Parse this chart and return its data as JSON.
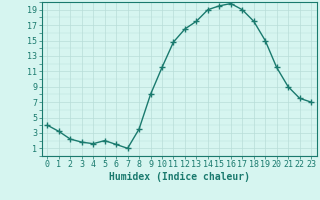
{
  "x": [
    0,
    1,
    2,
    3,
    4,
    5,
    6,
    7,
    8,
    9,
    10,
    11,
    12,
    13,
    14,
    15,
    16,
    17,
    18,
    19,
    20,
    21,
    22,
    23
  ],
  "y": [
    4.0,
    3.2,
    2.2,
    1.8,
    1.6,
    2.0,
    1.5,
    1.0,
    3.5,
    8.0,
    11.5,
    14.8,
    16.5,
    17.5,
    19.0,
    19.5,
    19.8,
    19.0,
    17.5,
    15.0,
    11.5,
    9.0,
    7.5,
    7.0
  ],
  "line_color": "#1a7a6e",
  "marker": "+",
  "marker_size": 4,
  "marker_lw": 1.0,
  "line_width": 1.0,
  "bg_color": "#d6f5f0",
  "grid_color": "#b8ddd8",
  "xlabel": "Humidex (Indice chaleur)",
  "xlim": [
    -0.5,
    23.5
  ],
  "ylim": [
    0,
    20
  ],
  "yticks": [
    1,
    3,
    5,
    7,
    9,
    11,
    13,
    15,
    17,
    19
  ],
  "xticks": [
    0,
    1,
    2,
    3,
    4,
    5,
    6,
    7,
    8,
    9,
    10,
    11,
    12,
    13,
    14,
    15,
    16,
    17,
    18,
    19,
    20,
    21,
    22,
    23
  ],
  "xtick_labels": [
    "0",
    "1",
    "2",
    "3",
    "4",
    "5",
    "6",
    "7",
    "8",
    "9",
    "10",
    "11",
    "12",
    "13",
    "14",
    "15",
    "16",
    "17",
    "18",
    "19",
    "20",
    "21",
    "22",
    "23"
  ],
  "tick_color": "#1a7a6e",
  "xlabel_fontsize": 7,
  "tick_fontsize": 6,
  "spine_color": "#1a7a6e"
}
